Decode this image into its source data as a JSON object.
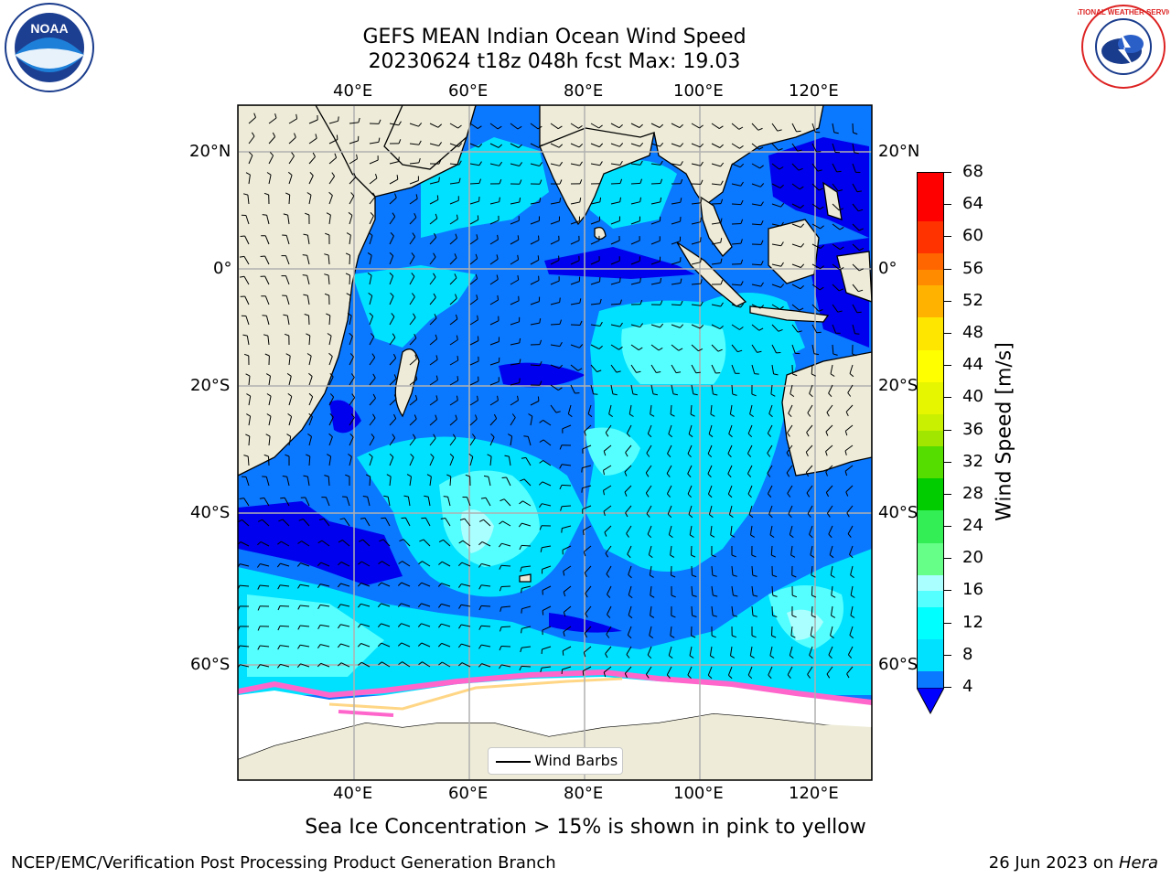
{
  "header": {
    "title_line1": "GEFS MEAN Indian Ocean Wind Speed",
    "title_line2": "20230624 t18z 048h fcst   Max: 19.03"
  },
  "map": {
    "lon_ticks_top": [
      "40°E",
      "60°E",
      "80°E",
      "100°E",
      "120°E"
    ],
    "lon_ticks_bottom": [
      "40°E",
      "60°E",
      "80°E",
      "100°E",
      "120°E"
    ],
    "lat_ticks_left": [
      "20°N",
      "0°",
      "20°S",
      "40°S",
      "60°S"
    ],
    "lat_ticks_right": [
      "20°N",
      "0°",
      "20°S",
      "40°S",
      "60°S"
    ],
    "legend_label": "Wind Barbs",
    "colors": {
      "land": "#eeecd8",
      "ocean_base": "#0a78ff",
      "sea_ice_edge": "#ff66cc"
    }
  },
  "colorbar": {
    "title": "Wind Speed [m/s]",
    "labels": [
      "68",
      "64",
      "60",
      "56",
      "52",
      "48",
      "44",
      "40",
      "36",
      "32",
      "28",
      "24",
      "20",
      "16",
      "12",
      "8",
      "4"
    ],
    "colors": [
      "#ff0000",
      "#ff3300",
      "#ff6600",
      "#ff8c00",
      "#ffb300",
      "#ffe600",
      "#ffff00",
      "#e6f500",
      "#c8f000",
      "#a0e600",
      "#55dd00",
      "#00cc00",
      "#33ee55",
      "#66ff88",
      "#aaffff",
      "#55ffff",
      "#00ffff",
      "#00e1ff",
      "#0a78ff"
    ],
    "under_color": "#0000ff"
  },
  "note": "Sea Ice Concentration > 15% is shown in pink to yellow",
  "footer": {
    "left": "NCEP/EMC/Verification Post Processing Product Generation Branch",
    "right_prefix": "26 Jun 2023 on ",
    "right_italic": "Hera"
  },
  "logos": {
    "noaa": "NOAA",
    "nws": "NATIONAL WEATHER SERVICE"
  }
}
